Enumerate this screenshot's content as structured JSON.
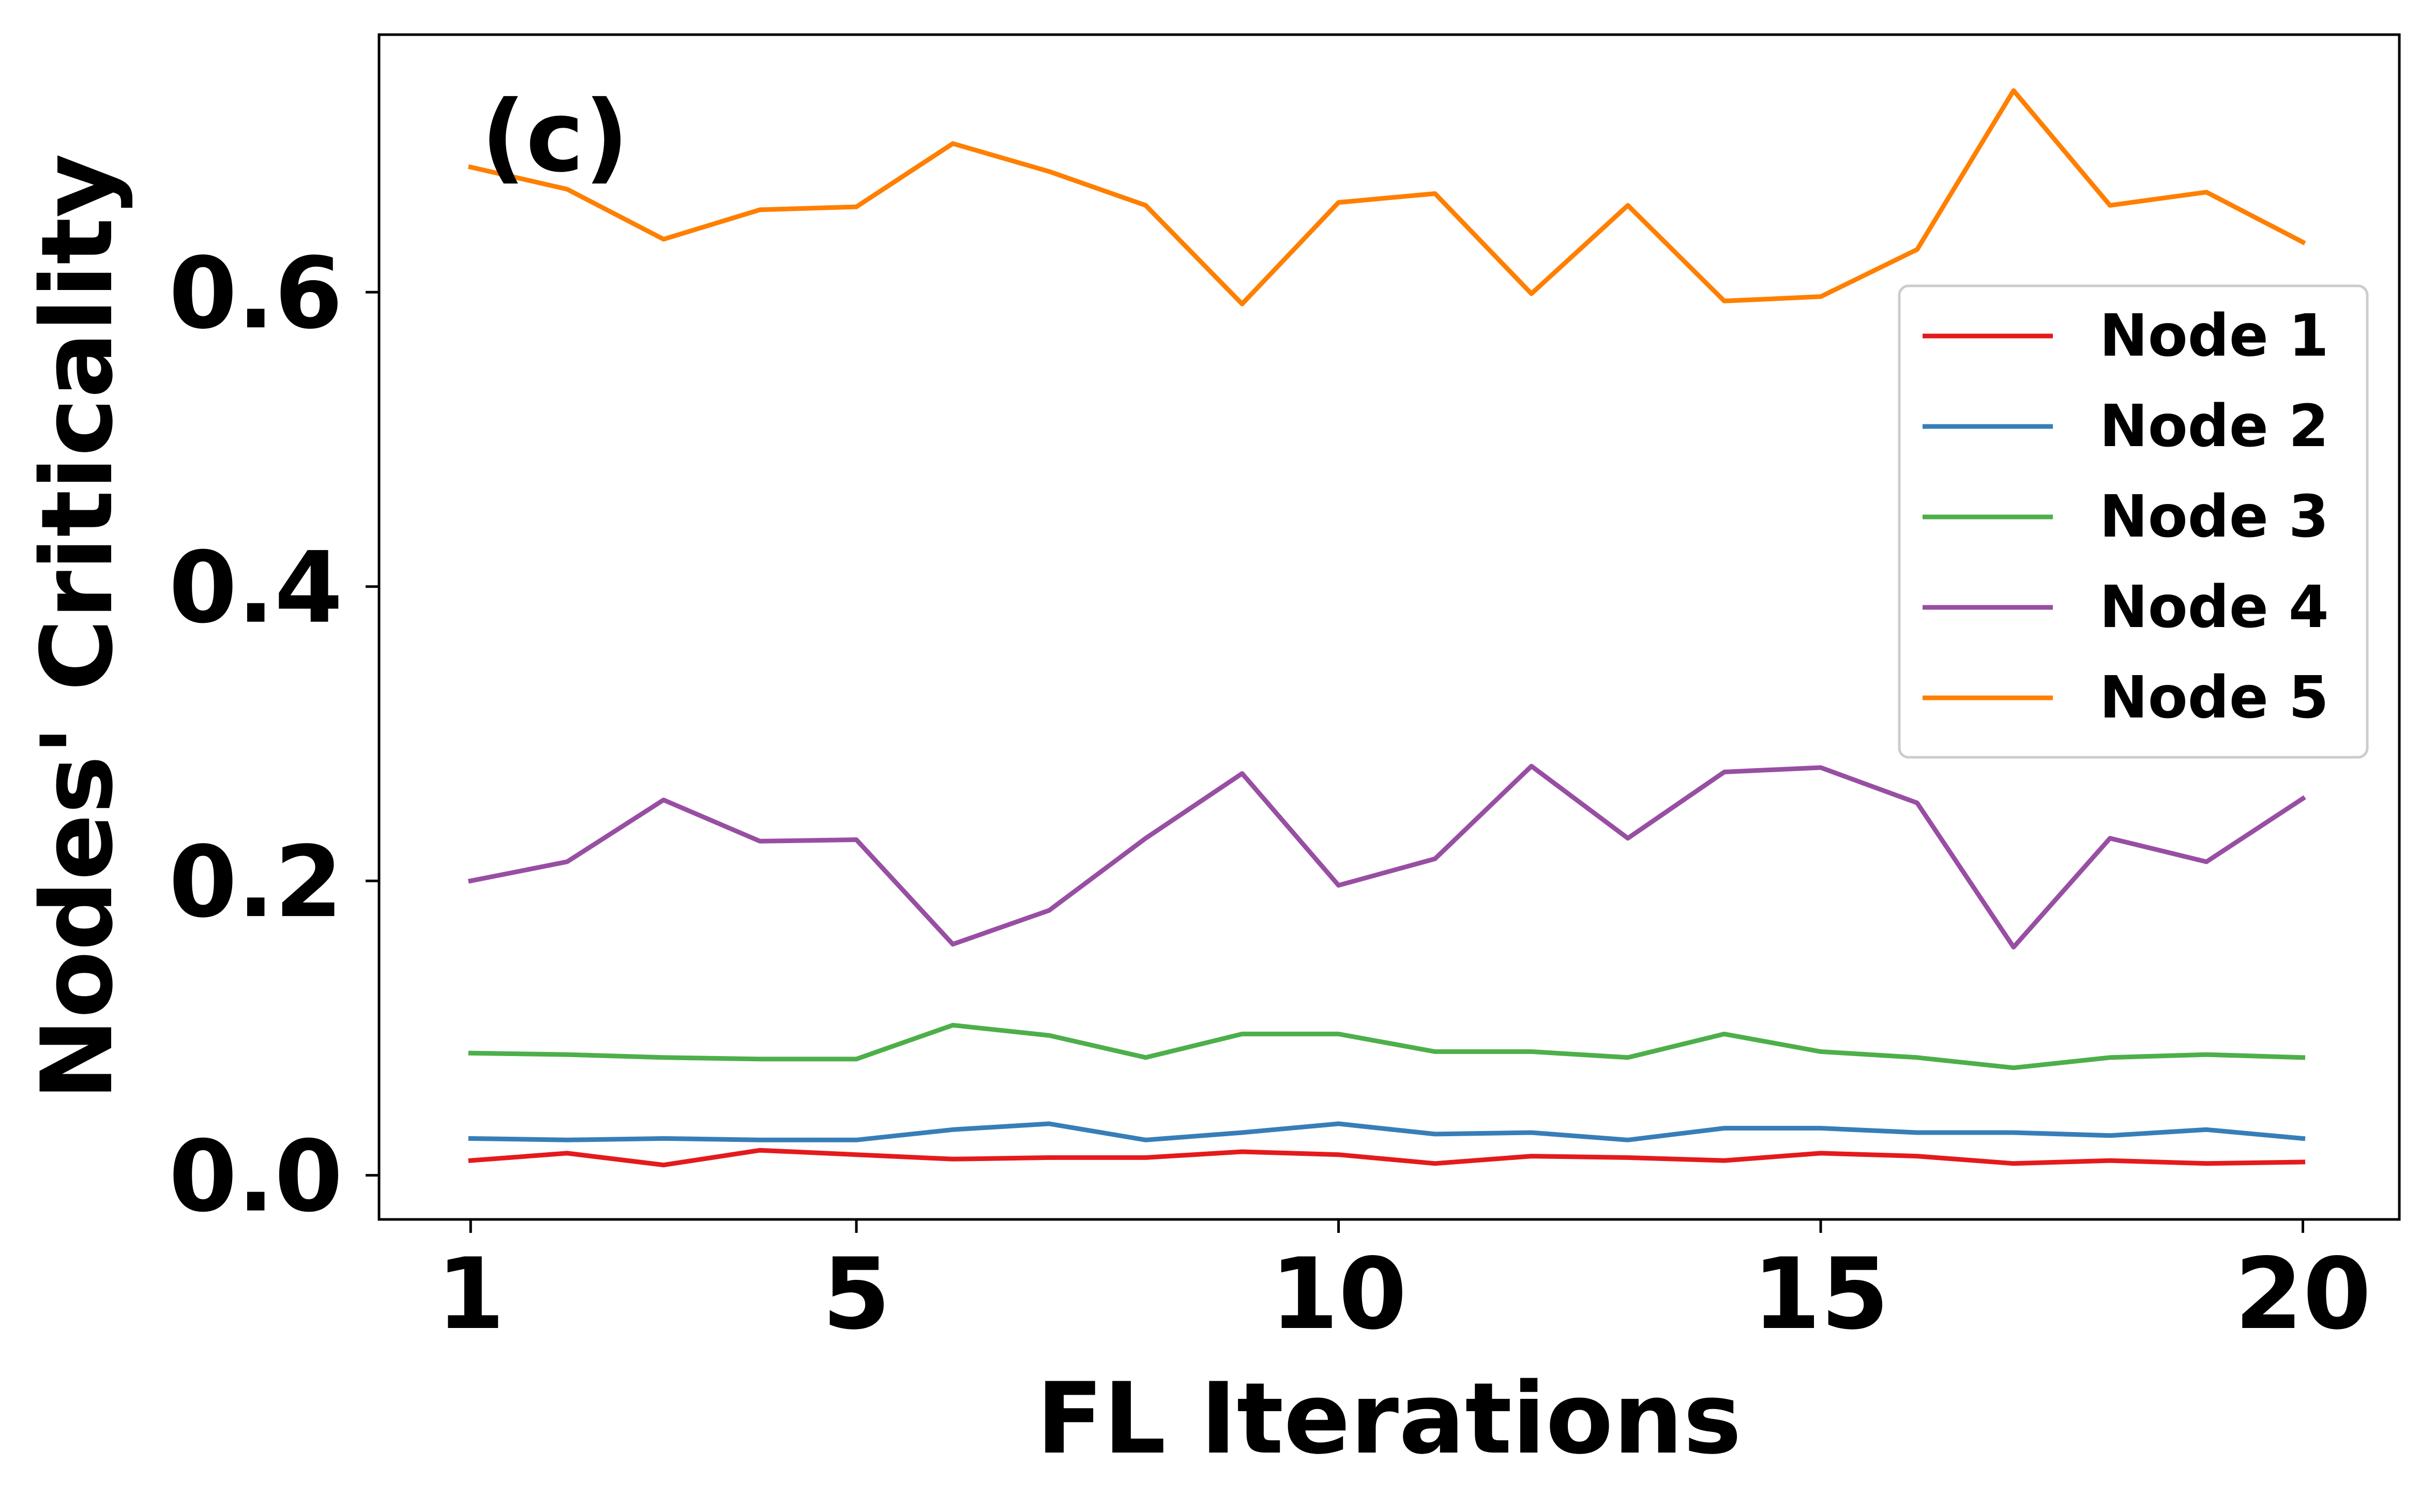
{
  "chart_data": {
    "type": "line",
    "panel_label": "(c)",
    "xlabel": "FL Iterations",
    "ylabel": "Nodes' Criticality",
    "x": [
      1,
      2,
      3,
      4,
      5,
      6,
      7,
      8,
      9,
      10,
      11,
      12,
      13,
      14,
      15,
      16,
      17,
      18,
      19,
      20
    ],
    "xlim": [
      0.05,
      21.0
    ],
    "ylim": [
      -0.03,
      0.775
    ],
    "xticks": [
      1,
      5,
      10,
      15,
      20
    ],
    "xtick_labels": [
      "1",
      "5",
      "10",
      "15",
      "20"
    ],
    "yticks": [
      0.0,
      0.2,
      0.4,
      0.6
    ],
    "ytick_labels": [
      "0.0",
      "0.2",
      "0.4",
      "0.6"
    ],
    "grid": false,
    "legend_position": "center-right",
    "series": [
      {
        "name": "Node 1",
        "color": "#e41a1c",
        "values": [
          0.01,
          0.015,
          0.007,
          0.017,
          0.014,
          0.011,
          0.012,
          0.012,
          0.016,
          0.014,
          0.008,
          0.013,
          0.012,
          0.01,
          0.015,
          0.013,
          0.008,
          0.01,
          0.008,
          0.009
        ]
      },
      {
        "name": "Node 2",
        "color": "#377eb8",
        "values": [
          0.025,
          0.024,
          0.025,
          0.024,
          0.024,
          0.031,
          0.035,
          0.024,
          0.029,
          0.035,
          0.028,
          0.029,
          0.024,
          0.032,
          0.032,
          0.029,
          0.029,
          0.027,
          0.031,
          0.025
        ]
      },
      {
        "name": "Node 3",
        "color": "#4daf4a",
        "values": [
          0.083,
          0.082,
          0.08,
          0.079,
          0.079,
          0.102,
          0.095,
          0.08,
          0.096,
          0.096,
          0.084,
          0.084,
          0.08,
          0.096,
          0.084,
          0.08,
          0.073,
          0.08,
          0.082,
          0.08
        ]
      },
      {
        "name": "Node 4",
        "color": "#984ea3",
        "values": [
          0.2,
          0.213,
          0.255,
          0.227,
          0.228,
          0.157,
          0.18,
          0.229,
          0.273,
          0.197,
          0.215,
          0.278,
          0.229,
          0.274,
          0.277,
          0.253,
          0.155,
          0.229,
          0.213,
          0.256
        ]
      },
      {
        "name": "Node 5",
        "color": "#ff7f00",
        "values": [
          0.685,
          0.67,
          0.636,
          0.656,
          0.658,
          0.701,
          0.682,
          0.659,
          0.592,
          0.661,
          0.667,
          0.599,
          0.659,
          0.594,
          0.597,
          0.629,
          0.737,
          0.659,
          0.668,
          0.634
        ]
      }
    ]
  }
}
